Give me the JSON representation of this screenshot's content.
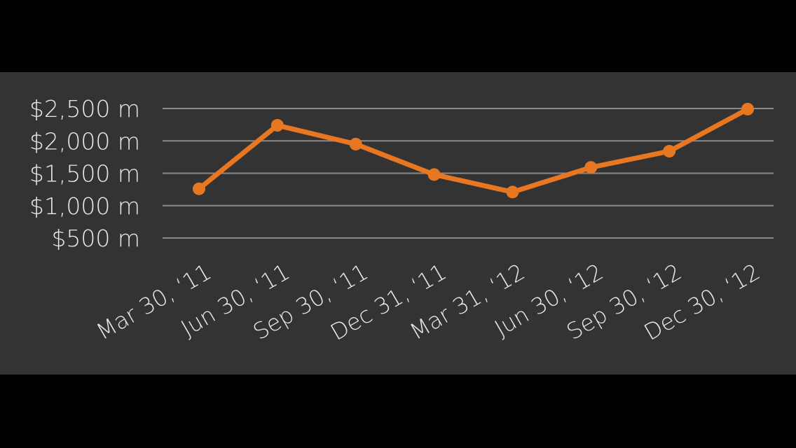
{
  "colors": {
    "background": "#000000",
    "panel": "#333333",
    "grid": "#8a8a8a",
    "text": "#e8e8e8",
    "series": "#e87722"
  },
  "chart_data": {
    "type": "line",
    "title": "",
    "xlabel": "",
    "ylabel": "",
    "grid": true,
    "legend": "none",
    "ylim": [
      500,
      2500
    ],
    "y_ticks": [
      2500,
      2000,
      1500,
      1000,
      500
    ],
    "y_tick_labels": [
      "$2,500 m",
      "$2,000 m",
      "$1,500 m",
      "$1,000 m",
      "$500 m"
    ],
    "categories": [
      "Mar 30, '11",
      "Jun 30, '11",
      "Sep 30, '11",
      "Dec 31, '11",
      "Mar 31, '12",
      "Jun 30, '12",
      "Sep 30, '12",
      "Dec 30, '12"
    ],
    "category_labels": [
      "Mar 30, ‘11",
      "Jun 30, ‘11",
      "Sep 30, ‘11",
      "Dec 31, ‘11",
      "Mar 31, ‘12",
      "Jun 30, ‘12",
      "Sep 30, ‘12",
      "Dec 30, ‘12"
    ],
    "series": [
      {
        "values": [
          1260,
          2240,
          1950,
          1480,
          1210,
          1590,
          1840,
          2490
        ]
      }
    ]
  }
}
